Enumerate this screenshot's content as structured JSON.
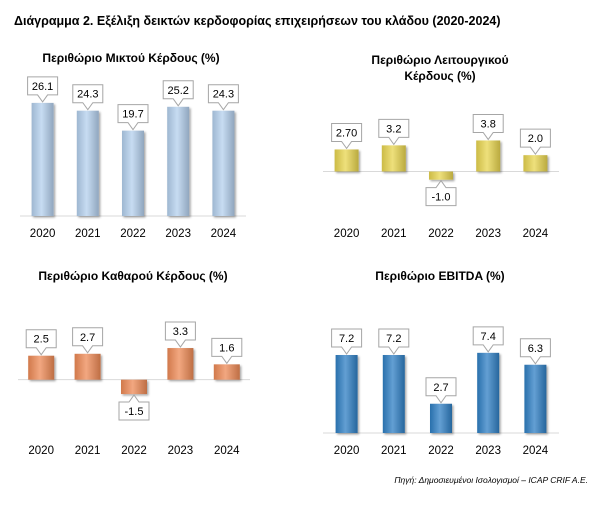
{
  "title": "Διάγραμμα 2. Εξέλιξη δεικτών κερδοφορίας επιχειρήσεων του κλάδου (2020-2024)",
  "source": "Πηγή: Δημοσιευμένοι Ισολογισμοί – ICAP CRIF A.E.",
  "chart_data": [
    {
      "type": "bar",
      "title": "Περιθώριο Μικτού Κέρδους (%)",
      "categories": [
        "2020",
        "2021",
        "2022",
        "2023",
        "2024"
      ],
      "values": [
        26.1,
        24.3,
        19.7,
        25.2,
        24.3
      ],
      "labels": [
        "26.1",
        "24.3",
        "19.7",
        "25.2",
        "24.3"
      ],
      "ylim": [
        0,
        30
      ],
      "color": "#b4d0ee"
    },
    {
      "type": "bar",
      "title": "Περιθώριο Λειτουργικού Κέρδους (%)",
      "categories": [
        "2020",
        "2021",
        "2022",
        "2023",
        "2024"
      ],
      "values": [
        2.7,
        3.2,
        -1.0,
        3.8,
        2.0
      ],
      "labels": [
        "2.70",
        "3.2",
        "-1.0",
        "3.8",
        "2.0"
      ],
      "ylim": [
        -3,
        9
      ],
      "color": "#e8d54f"
    },
    {
      "type": "bar",
      "title": "Περιθώριο Καθαρού Κέρδους (%)",
      "categories": [
        "2020",
        "2021",
        "2022",
        "2023",
        "2024"
      ],
      "values": [
        2.5,
        2.7,
        -1.5,
        3.3,
        1.6
      ],
      "labels": [
        "2.5",
        "2.7",
        "-1.5",
        "3.3",
        "1.6"
      ],
      "ylim": [
        -4,
        8
      ],
      "color": "#ee8a55"
    },
    {
      "type": "bar",
      "title": "Περιθώριο EBITDA (%)",
      "categories": [
        "2020",
        "2021",
        "2022",
        "2023",
        "2024"
      ],
      "values": [
        7.2,
        7.2,
        2.7,
        7.4,
        6.3
      ],
      "labels": [
        "7.2",
        "7.2",
        "2.7",
        "7.4",
        "6.3"
      ],
      "ylim": [
        0,
        12
      ],
      "color": "#2f7fc4"
    }
  ]
}
